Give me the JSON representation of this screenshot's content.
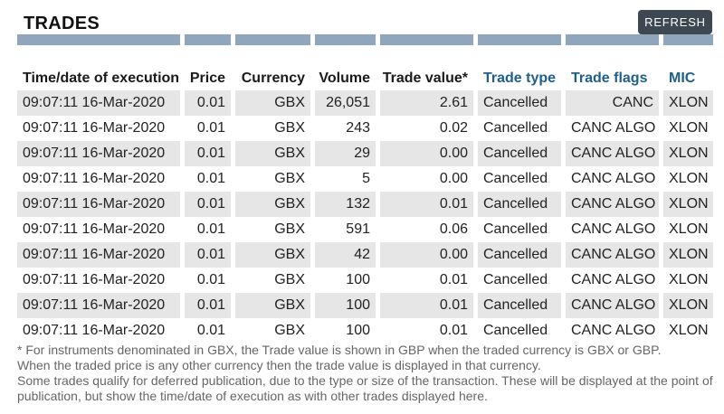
{
  "header": {
    "title": "TRADES",
    "refresh_label": "REFRESH"
  },
  "table": {
    "columns": [
      {
        "label": "Time/date of execution",
        "linked": false
      },
      {
        "label": "Price",
        "linked": false
      },
      {
        "label": "Currency",
        "linked": false
      },
      {
        "label": "Volume",
        "linked": false
      },
      {
        "label": "Trade value*",
        "linked": false
      },
      {
        "label": "Trade type",
        "linked": true
      },
      {
        "label": "Trade flags",
        "linked": true
      },
      {
        "label": "MIC",
        "linked": true
      }
    ],
    "rows": [
      [
        "09:07:11 16-Mar-2020",
        "0.01",
        "GBX",
        "26,051",
        "2.61",
        "Cancelled",
        "CANC",
        "XLON"
      ],
      [
        "09:07:11 16-Mar-2020",
        "0.01",
        "GBX",
        "243",
        "0.02",
        "Cancelled",
        "CANC ALGO",
        "XLON"
      ],
      [
        "09:07:11 16-Mar-2020",
        "0.01",
        "GBX",
        "29",
        "0.00",
        "Cancelled",
        "CANC ALGO",
        "XLON"
      ],
      [
        "09:07:11 16-Mar-2020",
        "0.01",
        "GBX",
        "5",
        "0.00",
        "Cancelled",
        "CANC ALGO",
        "XLON"
      ],
      [
        "09:07:11 16-Mar-2020",
        "0.01",
        "GBX",
        "132",
        "0.01",
        "Cancelled",
        "CANC ALGO",
        "XLON"
      ],
      [
        "09:07:11 16-Mar-2020",
        "0.01",
        "GBX",
        "591",
        "0.06",
        "Cancelled",
        "CANC ALGO",
        "XLON"
      ],
      [
        "09:07:11 16-Mar-2020",
        "0.01",
        "GBX",
        "42",
        "0.00",
        "Cancelled",
        "CANC ALGO",
        "XLON"
      ],
      [
        "09:07:11 16-Mar-2020",
        "0.01",
        "GBX",
        "100",
        "0.01",
        "Cancelled",
        "CANC ALGO",
        "XLON"
      ],
      [
        "09:07:11 16-Mar-2020",
        "0.01",
        "GBX",
        "100",
        "0.01",
        "Cancelled",
        "CANC ALGO",
        "XLON"
      ],
      [
        "09:07:11 16-Mar-2020",
        "0.01",
        "GBX",
        "100",
        "0.01",
        "Cancelled",
        "CANC ALGO",
        "XLON"
      ]
    ]
  },
  "footnote": {
    "lines": [
      "* For instruments denominated in GBX, the Trade value is shown in GBP when the traded currency is GBX or GBP.",
      "When the traded price is any other currency then the trade value is displayed in that currency.",
      "Some trades qualify for deferred publication, due to the type or size of the transaction. These will be displayed at the point of publication, but show the time/date of execution as with other trades displayed here."
    ]
  },
  "colors": {
    "column_bar": "#8fa6bd",
    "row_shade": "#e6e6e6",
    "link_header": "#1e5f8a",
    "button_bg": "#3d4852"
  }
}
